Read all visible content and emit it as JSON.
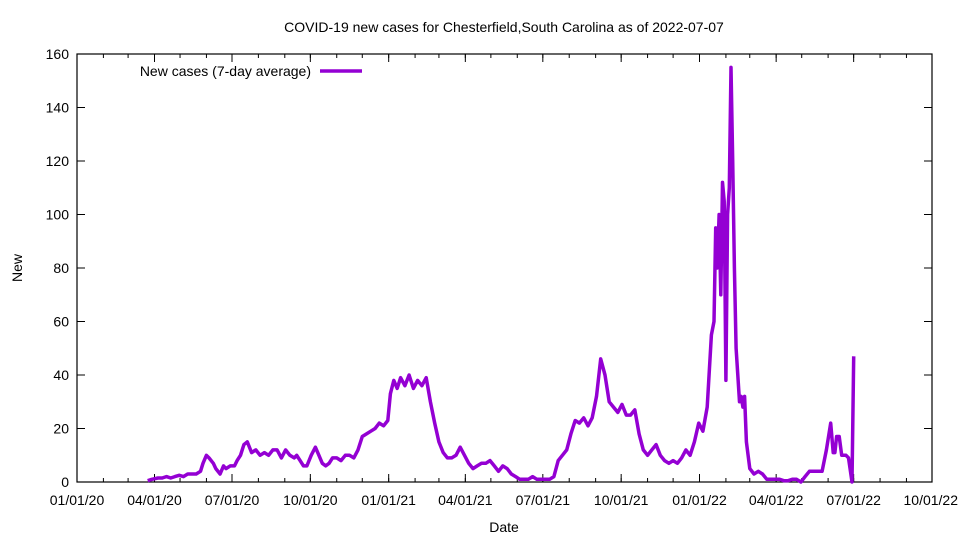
{
  "chart_data": {
    "type": "line",
    "title": "COVID-19 new cases for Chesterfield,South Carolina as of 2022-07-07",
    "xlabel": "Date",
    "ylabel": "New",
    "ylim": [
      0,
      160
    ],
    "xlim": [
      "2020-01-01",
      "2022-10-01"
    ],
    "yticks": [
      "0",
      "20",
      "40",
      "60",
      "80",
      "100",
      "120",
      "140",
      "160"
    ],
    "xticks": [
      {
        "date": "2020-01-01",
        "label": "01/01/20"
      },
      {
        "date": "2020-04-01",
        "label": "04/01/20"
      },
      {
        "date": "2020-07-01",
        "label": "07/01/20"
      },
      {
        "date": "2020-10-01",
        "label": "10/01/20"
      },
      {
        "date": "2021-01-01",
        "label": "01/01/21"
      },
      {
        "date": "2021-04-01",
        "label": "04/01/21"
      },
      {
        "date": "2021-07-01",
        "label": "07/01/21"
      },
      {
        "date": "2021-10-01",
        "label": "10/01/21"
      },
      {
        "date": "2022-01-01",
        "label": "01/01/22"
      },
      {
        "date": "2022-04-01",
        "label": "04/01/22"
      },
      {
        "date": "2022-07-01",
        "label": "07/01/22"
      },
      {
        "date": "2022-10-01",
        "label": "10/01/22"
      }
    ],
    "grid": false,
    "legend_position": "top-left",
    "series": [
      {
        "name": "New cases (7-day average)",
        "color": "#9400d3",
        "x_days_since_2020_01_01": [
          83,
          88,
          95,
          100,
          105,
          110,
          115,
          120,
          125,
          130,
          135,
          140,
          145,
          148,
          152,
          155,
          160,
          163,
          168,
          172,
          175,
          180,
          185,
          188,
          192,
          196,
          200,
          205,
          210,
          215,
          220,
          225,
          230,
          235,
          240,
          245,
          250,
          255,
          258,
          262,
          266,
          270,
          275,
          280,
          284,
          288,
          292,
          296,
          300,
          305,
          310,
          315,
          320,
          325,
          330,
          335,
          340,
          345,
          350,
          355,
          360,
          365,
          368,
          372,
          376,
          380,
          385,
          390,
          395,
          400,
          405,
          410,
          415,
          420,
          425,
          430,
          435,
          440,
          445,
          450,
          455,
          460,
          465,
          470,
          475,
          480,
          485,
          490,
          495,
          500,
          505,
          510,
          515,
          520,
          525,
          530,
          535,
          540,
          545,
          550,
          555,
          560,
          565,
          570,
          575,
          580,
          585,
          590,
          595,
          600,
          605,
          610,
          615,
          620,
          625,
          630,
          635,
          640,
          645,
          650,
          655,
          660,
          665,
          670,
          675,
          680,
          685,
          690,
          695,
          700,
          705,
          710,
          715,
          720,
          725,
          730,
          735,
          740,
          745,
          748,
          750,
          752,
          754,
          756,
          758,
          760,
          762,
          764,
          766,
          768,
          770,
          772,
          774,
          776,
          778,
          780,
          782,
          784,
          786,
          788,
          790,
          795,
          800,
          805,
          810,
          815,
          820,
          825,
          830,
          835,
          840,
          845,
          850,
          855,
          860,
          865,
          870,
          875,
          880,
          885,
          888,
          890,
          892,
          895,
          898,
          900,
          903,
          906,
          910,
          912,
          914,
          915,
          916
        ],
        "values": [
          0.5,
          1,
          1.5,
          1.5,
          2,
          1.5,
          2,
          2.5,
          2,
          3,
          3,
          3,
          4,
          7,
          10,
          9,
          7,
          5,
          3,
          6,
          5,
          6,
          6,
          8,
          10,
          14,
          15,
          11,
          12,
          10,
          11,
          10,
          12,
          12,
          9,
          12,
          10,
          9,
          10,
          8,
          6,
          6,
          10,
          13,
          10,
          7,
          6,
          7,
          9,
          9,
          8,
          10,
          10,
          9,
          12,
          17,
          18,
          19,
          20,
          22,
          21,
          23,
          33,
          38,
          35,
          39,
          36,
          40,
          35,
          38,
          36,
          39,
          30,
          22,
          15,
          11,
          9,
          9,
          10,
          13,
          10,
          7,
          5,
          6,
          7,
          7,
          8,
          6,
          4,
          6,
          5,
          3,
          2,
          1,
          1,
          1,
          2,
          1,
          1,
          1,
          1,
          2,
          8,
          10,
          12,
          18,
          23,
          22,
          24,
          21,
          24,
          32,
          46,
          40,
          30,
          28,
          26,
          29,
          25,
          25,
          27,
          18,
          12,
          10,
          12,
          14,
          10,
          8,
          7,
          8,
          7,
          9,
          12,
          10,
          15,
          22,
          19,
          28,
          55,
          60,
          95,
          80,
          100,
          70,
          112,
          105,
          38,
          100,
          110,
          155,
          120,
          80,
          50,
          40,
          30,
          32,
          28,
          32,
          15,
          10,
          5,
          3,
          4,
          3,
          1,
          1,
          1,
          1,
          0.5,
          0.5,
          1,
          1,
          0,
          2,
          4,
          4,
          4,
          4,
          12,
          22,
          11,
          11,
          17,
          17,
          10,
          10,
          10,
          9,
          0,
          47
        ]
      }
    ]
  }
}
